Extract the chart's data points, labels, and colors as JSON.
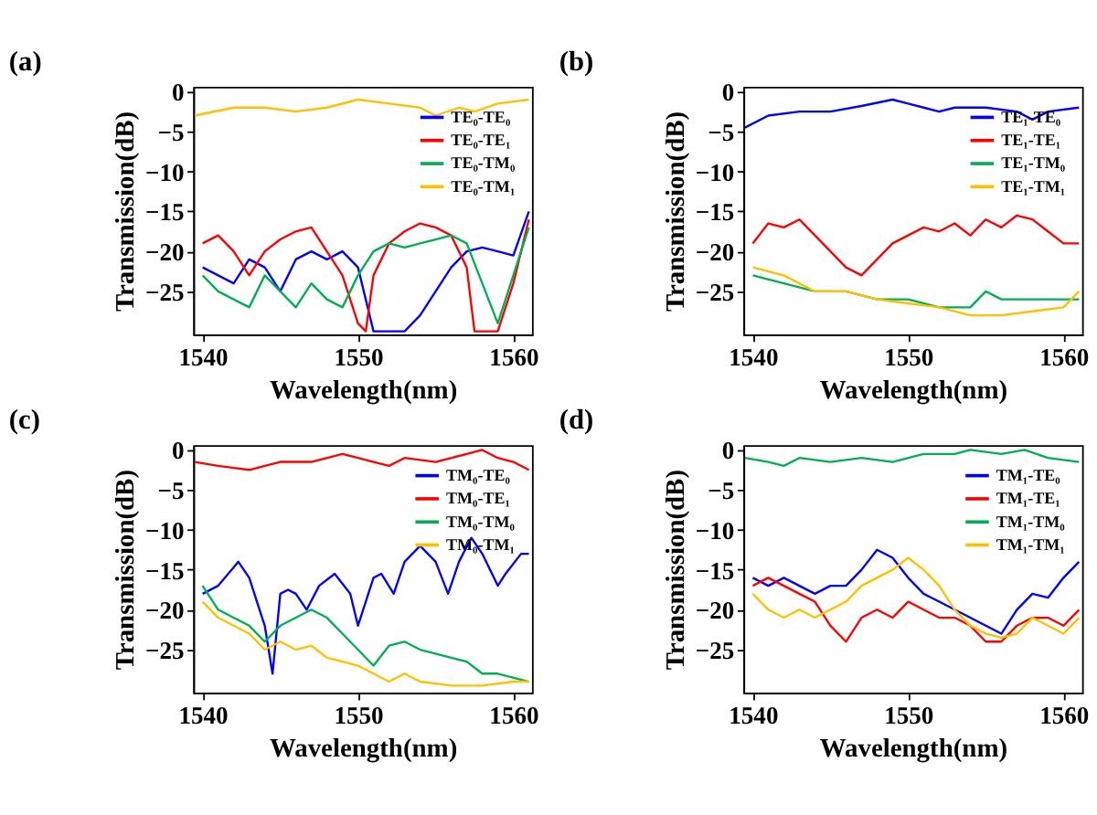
{
  "chart_data": [
    {
      "type": "line",
      "title": "(a)",
      "xlabel": "Wavelength(nm)",
      "ylabel": "Transmission(dB)",
      "xlim": [
        1539.4,
        1561.2
      ],
      "ylim": [
        -30.4,
        0.6
      ],
      "xticks": [
        1540,
        1550,
        1560
      ],
      "yticks": [
        -25,
        -20,
        -15,
        -10,
        -5,
        0
      ],
      "grid": false,
      "legend": "top right",
      "marker": "none",
      "line_style": "solid",
      "series": [
        {
          "name": "TE₀-TE₀",
          "color": "#0000ff",
          "x": [
            1540,
            1542,
            1543,
            1544,
            1545,
            1546,
            1547,
            1548,
            1549,
            1550,
            1551,
            1552,
            1553,
            1554,
            1555,
            1556,
            1557,
            1558,
            1559,
            1560,
            1561
          ],
          "values": [
            -22,
            -24,
            -21,
            -22,
            -25,
            -21,
            -20,
            -21,
            -20,
            -22,
            -30,
            -30,
            -30,
            -28,
            -25,
            -22,
            -20,
            -19.5,
            -20,
            -20.5,
            -15
          ]
        },
        {
          "name": "TE₀-TE₁",
          "color": "#ff0000",
          "x": [
            1540,
            1541,
            1542,
            1543,
            1544,
            1545,
            1546,
            1547,
            1548,
            1549,
            1550,
            1550.5,
            1551,
            1552,
            1553,
            1554,
            1555,
            1556,
            1557,
            1557.5,
            1559,
            1560,
            1561
          ],
          "values": [
            -19,
            -18,
            -20,
            -23,
            -20,
            -18.5,
            -17.5,
            -17,
            -20,
            -23,
            -29,
            -30,
            -23,
            -19,
            -17.5,
            -16.5,
            -17,
            -18,
            -22,
            -30,
            -30,
            -24,
            -16
          ]
        },
        {
          "name": "TE₀-TM₀",
          "color": "#00b050",
          "x": [
            1540,
            1541,
            1542,
            1543,
            1544,
            1545,
            1546,
            1547,
            1548,
            1549,
            1550,
            1551,
            1552,
            1553,
            1554,
            1555,
            1556,
            1557,
            1558,
            1559,
            1560,
            1561
          ],
          "values": [
            -23,
            -25,
            -26,
            -27,
            -23,
            -25,
            -27,
            -24,
            -26,
            -27,
            -23,
            -20,
            -19,
            -19.5,
            -19,
            -18.5,
            -18,
            -19,
            -24,
            -29,
            -23,
            -17
          ]
        },
        {
          "name": "TE₀-TM₁",
          "color": "#ffc000",
          "x": [
            1539.5,
            1542,
            1544,
            1546,
            1548,
            1550,
            1552,
            1554,
            1555,
            1556.5,
            1557.5,
            1559,
            1561
          ],
          "values": [
            -3,
            -2,
            -2,
            -2.5,
            -2,
            -1,
            -1.5,
            -2,
            -3,
            -2,
            -2.5,
            -1.5,
            -1
          ]
        }
      ]
    },
    {
      "type": "line",
      "title": "(b)",
      "xlabel": "Wavelength(nm)",
      "ylabel": "Transmission(dB)",
      "xlim": [
        1539.4,
        1561.2
      ],
      "ylim": [
        -30.4,
        0.6
      ],
      "xticks": [
        1540,
        1550,
        1560
      ],
      "yticks": [
        -25,
        -20,
        -15,
        -10,
        -5,
        0
      ],
      "grid": false,
      "legend": "top right",
      "marker": "none",
      "line_style": "solid",
      "series": [
        {
          "name": "TE₁-TE₀",
          "color": "#0000ff",
          "x": [
            1539.5,
            1541,
            1543,
            1545,
            1547,
            1549,
            1550,
            1551,
            1552,
            1553,
            1555,
            1557,
            1558,
            1559,
            1561
          ],
          "values": [
            -4.5,
            -3,
            -2.5,
            -2.5,
            -1.8,
            -1,
            -1.5,
            -2,
            -2.5,
            -2,
            -2,
            -2.5,
            -3.5,
            -2.5,
            -2
          ]
        },
        {
          "name": "TE₁-TE₁",
          "color": "#ff0000",
          "x": [
            1540,
            1541,
            1542,
            1543,
            1544,
            1545,
            1546,
            1547,
            1548,
            1549,
            1550,
            1551,
            1552,
            1553,
            1554,
            1555,
            1556,
            1557,
            1558,
            1559,
            1560,
            1561
          ],
          "values": [
            -19,
            -16.5,
            -17,
            -16,
            -18,
            -20,
            -22,
            -23,
            -21,
            -19,
            -18,
            -17,
            -17.5,
            -16.5,
            -18,
            -16,
            -17,
            -15.5,
            -16,
            -17.5,
            -19,
            -19
          ]
        },
        {
          "name": "TE₁-TM₀",
          "color": "#00b050",
          "x": [
            1540,
            1542,
            1544,
            1546,
            1548,
            1550,
            1552,
            1554,
            1555,
            1556,
            1558,
            1561
          ],
          "values": [
            -23,
            -24,
            -25,
            -25,
            -26,
            -26,
            -27,
            -27,
            -25,
            -26,
            -26,
            -26
          ]
        },
        {
          "name": "TE₁-TM₁",
          "color": "#ffc000",
          "x": [
            1540,
            1542,
            1544,
            1546,
            1548,
            1550,
            1552,
            1554,
            1556,
            1558,
            1560,
            1561
          ],
          "values": [
            -22,
            -23,
            -25,
            -25,
            -26,
            -26.5,
            -27,
            -28,
            -28,
            -27.5,
            -27,
            -25
          ]
        }
      ]
    },
    {
      "type": "line",
      "title": "(c)",
      "xlabel": "Wavelength(nm)",
      "ylabel": "Transmission(dB)",
      "xlim": [
        1539.4,
        1561.2
      ],
      "ylim": [
        -30.4,
        0.6
      ],
      "xticks": [
        1540,
        1550,
        1560
      ],
      "yticks": [
        -25,
        -20,
        -15,
        -10,
        -5,
        0
      ],
      "grid": false,
      "legend": "top right",
      "marker": "none",
      "line_style": "solid",
      "series": [
        {
          "name": "TM₀-TE₀",
          "color": "#0000ff",
          "x": [
            1540,
            1541,
            1542.3,
            1543,
            1544,
            1544.5,
            1545,
            1545.5,
            1546,
            1546.7,
            1547.5,
            1548.5,
            1549.5,
            1550,
            1551,
            1551.5,
            1552.3,
            1553,
            1554,
            1555,
            1555.8,
            1556.5,
            1557.3,
            1558,
            1559,
            1559.5,
            1560.5,
            1561
          ],
          "values": [
            -18,
            -17,
            -14,
            -16,
            -22,
            -28,
            -18,
            -17.5,
            -18,
            -20,
            -17,
            -15.5,
            -18,
            -22,
            -16,
            -15.5,
            -18,
            -14,
            -12,
            -14,
            -18,
            -14,
            -11,
            -13,
            -17,
            -15.5,
            -13,
            -13
          ]
        },
        {
          "name": "TM₀-TE₁",
          "color": "#ff0000",
          "x": [
            1539.5,
            1541,
            1543,
            1545,
            1547,
            1549,
            1550,
            1551,
            1552,
            1553,
            1555,
            1557,
            1558,
            1559,
            1560,
            1561
          ],
          "values": [
            -1.5,
            -2,
            -2.5,
            -1.5,
            -1.5,
            -0.5,
            -1,
            -1.5,
            -2,
            -1,
            -1.5,
            -0.5,
            0,
            -1,
            -1.5,
            -2.5
          ]
        },
        {
          "name": "TM₀-TM₀",
          "color": "#00b050",
          "x": [
            1540,
            1541,
            1542,
            1543,
            1544,
            1545,
            1546,
            1547,
            1548,
            1549,
            1550,
            1551,
            1552,
            1553,
            1554,
            1556,
            1557,
            1558,
            1559,
            1561
          ],
          "values": [
            -17,
            -20,
            -21,
            -22,
            -24,
            -22,
            -21,
            -20,
            -21,
            -23,
            -25,
            -27,
            -24.5,
            -24,
            -25,
            -26,
            -26.5,
            -28,
            -28,
            -29
          ]
        },
        {
          "name": "TM₀-TM₁",
          "color": "#ffc000",
          "x": [
            1540,
            1541,
            1542,
            1543,
            1544,
            1545,
            1546,
            1547,
            1548,
            1549,
            1550,
            1551,
            1552,
            1553,
            1554,
            1556,
            1558,
            1560,
            1561
          ],
          "values": [
            -19,
            -21,
            -22,
            -23,
            -25,
            -24,
            -25,
            -24.5,
            -26,
            -26.5,
            -27,
            -28,
            -29,
            -28,
            -29,
            -29.5,
            -29.5,
            -29,
            -29
          ]
        }
      ]
    },
    {
      "type": "line",
      "title": "(d)",
      "xlabel": "Wavelength(nm)",
      "ylabel": "Transmission(dB)",
      "xlim": [
        1539.4,
        1561.2
      ],
      "ylim": [
        -30.4,
        0.6
      ],
      "xticks": [
        1540,
        1550,
        1560
      ],
      "yticks": [
        -25,
        -20,
        -15,
        -10,
        -5,
        0
      ],
      "grid": false,
      "legend": "top right",
      "marker": "none",
      "line_style": "solid",
      "series": [
        {
          "name": "TM₁-TE₀",
          "color": "#0000ff",
          "x": [
            1540,
            1541,
            1542,
            1543,
            1544,
            1545,
            1546,
            1547,
            1548,
            1549,
            1550,
            1551,
            1552,
            1553,
            1554,
            1555,
            1556,
            1557,
            1558,
            1559,
            1560,
            1561
          ],
          "values": [
            -16,
            -17,
            -16,
            -17,
            -18,
            -17,
            -17,
            -15,
            -12.5,
            -13.5,
            -16,
            -18,
            -19,
            -20,
            -21,
            -22,
            -23,
            -20,
            -18,
            -18.5,
            -16,
            -14
          ]
        },
        {
          "name": "TM₁-TE₁",
          "color": "#ff0000",
          "x": [
            1540,
            1541,
            1542,
            1543,
            1544,
            1545,
            1546,
            1547,
            1548,
            1549,
            1550,
            1551,
            1552,
            1553,
            1554,
            1555,
            1556,
            1557,
            1558,
            1559,
            1560,
            1561
          ],
          "values": [
            -17,
            -16,
            -17,
            -18,
            -19,
            -22,
            -24,
            -21,
            -20,
            -21,
            -19,
            -20,
            -21,
            -21,
            -22,
            -24,
            -24,
            -22,
            -21,
            -21,
            -22,
            -20
          ]
        },
        {
          "name": "TM₁-TM₀",
          "color": "#00b050",
          "x": [
            1539.5,
            1541,
            1542,
            1543,
            1545,
            1547,
            1549,
            1551,
            1553,
            1554,
            1556,
            1557.5,
            1559,
            1561
          ],
          "values": [
            -1,
            -1.5,
            -2,
            -1,
            -1.5,
            -1,
            -1.5,
            -0.5,
            -0.5,
            0,
            -0.5,
            0,
            -1,
            -1.5
          ]
        },
        {
          "name": "TM₁-TM₁",
          "color": "#ffc000",
          "x": [
            1540,
            1541,
            1542,
            1543,
            1544,
            1545,
            1546,
            1547,
            1548,
            1549,
            1550,
            1551,
            1552,
            1553,
            1554,
            1555,
            1556,
            1557,
            1558,
            1559,
            1560,
            1561
          ],
          "values": [
            -18,
            -20,
            -21,
            -20,
            -21,
            -20,
            -19,
            -17,
            -16,
            -15,
            -13.5,
            -15,
            -17,
            -20,
            -22,
            -23,
            -23.5,
            -23,
            -21,
            -22,
            -23,
            -21
          ]
        }
      ]
    }
  ]
}
